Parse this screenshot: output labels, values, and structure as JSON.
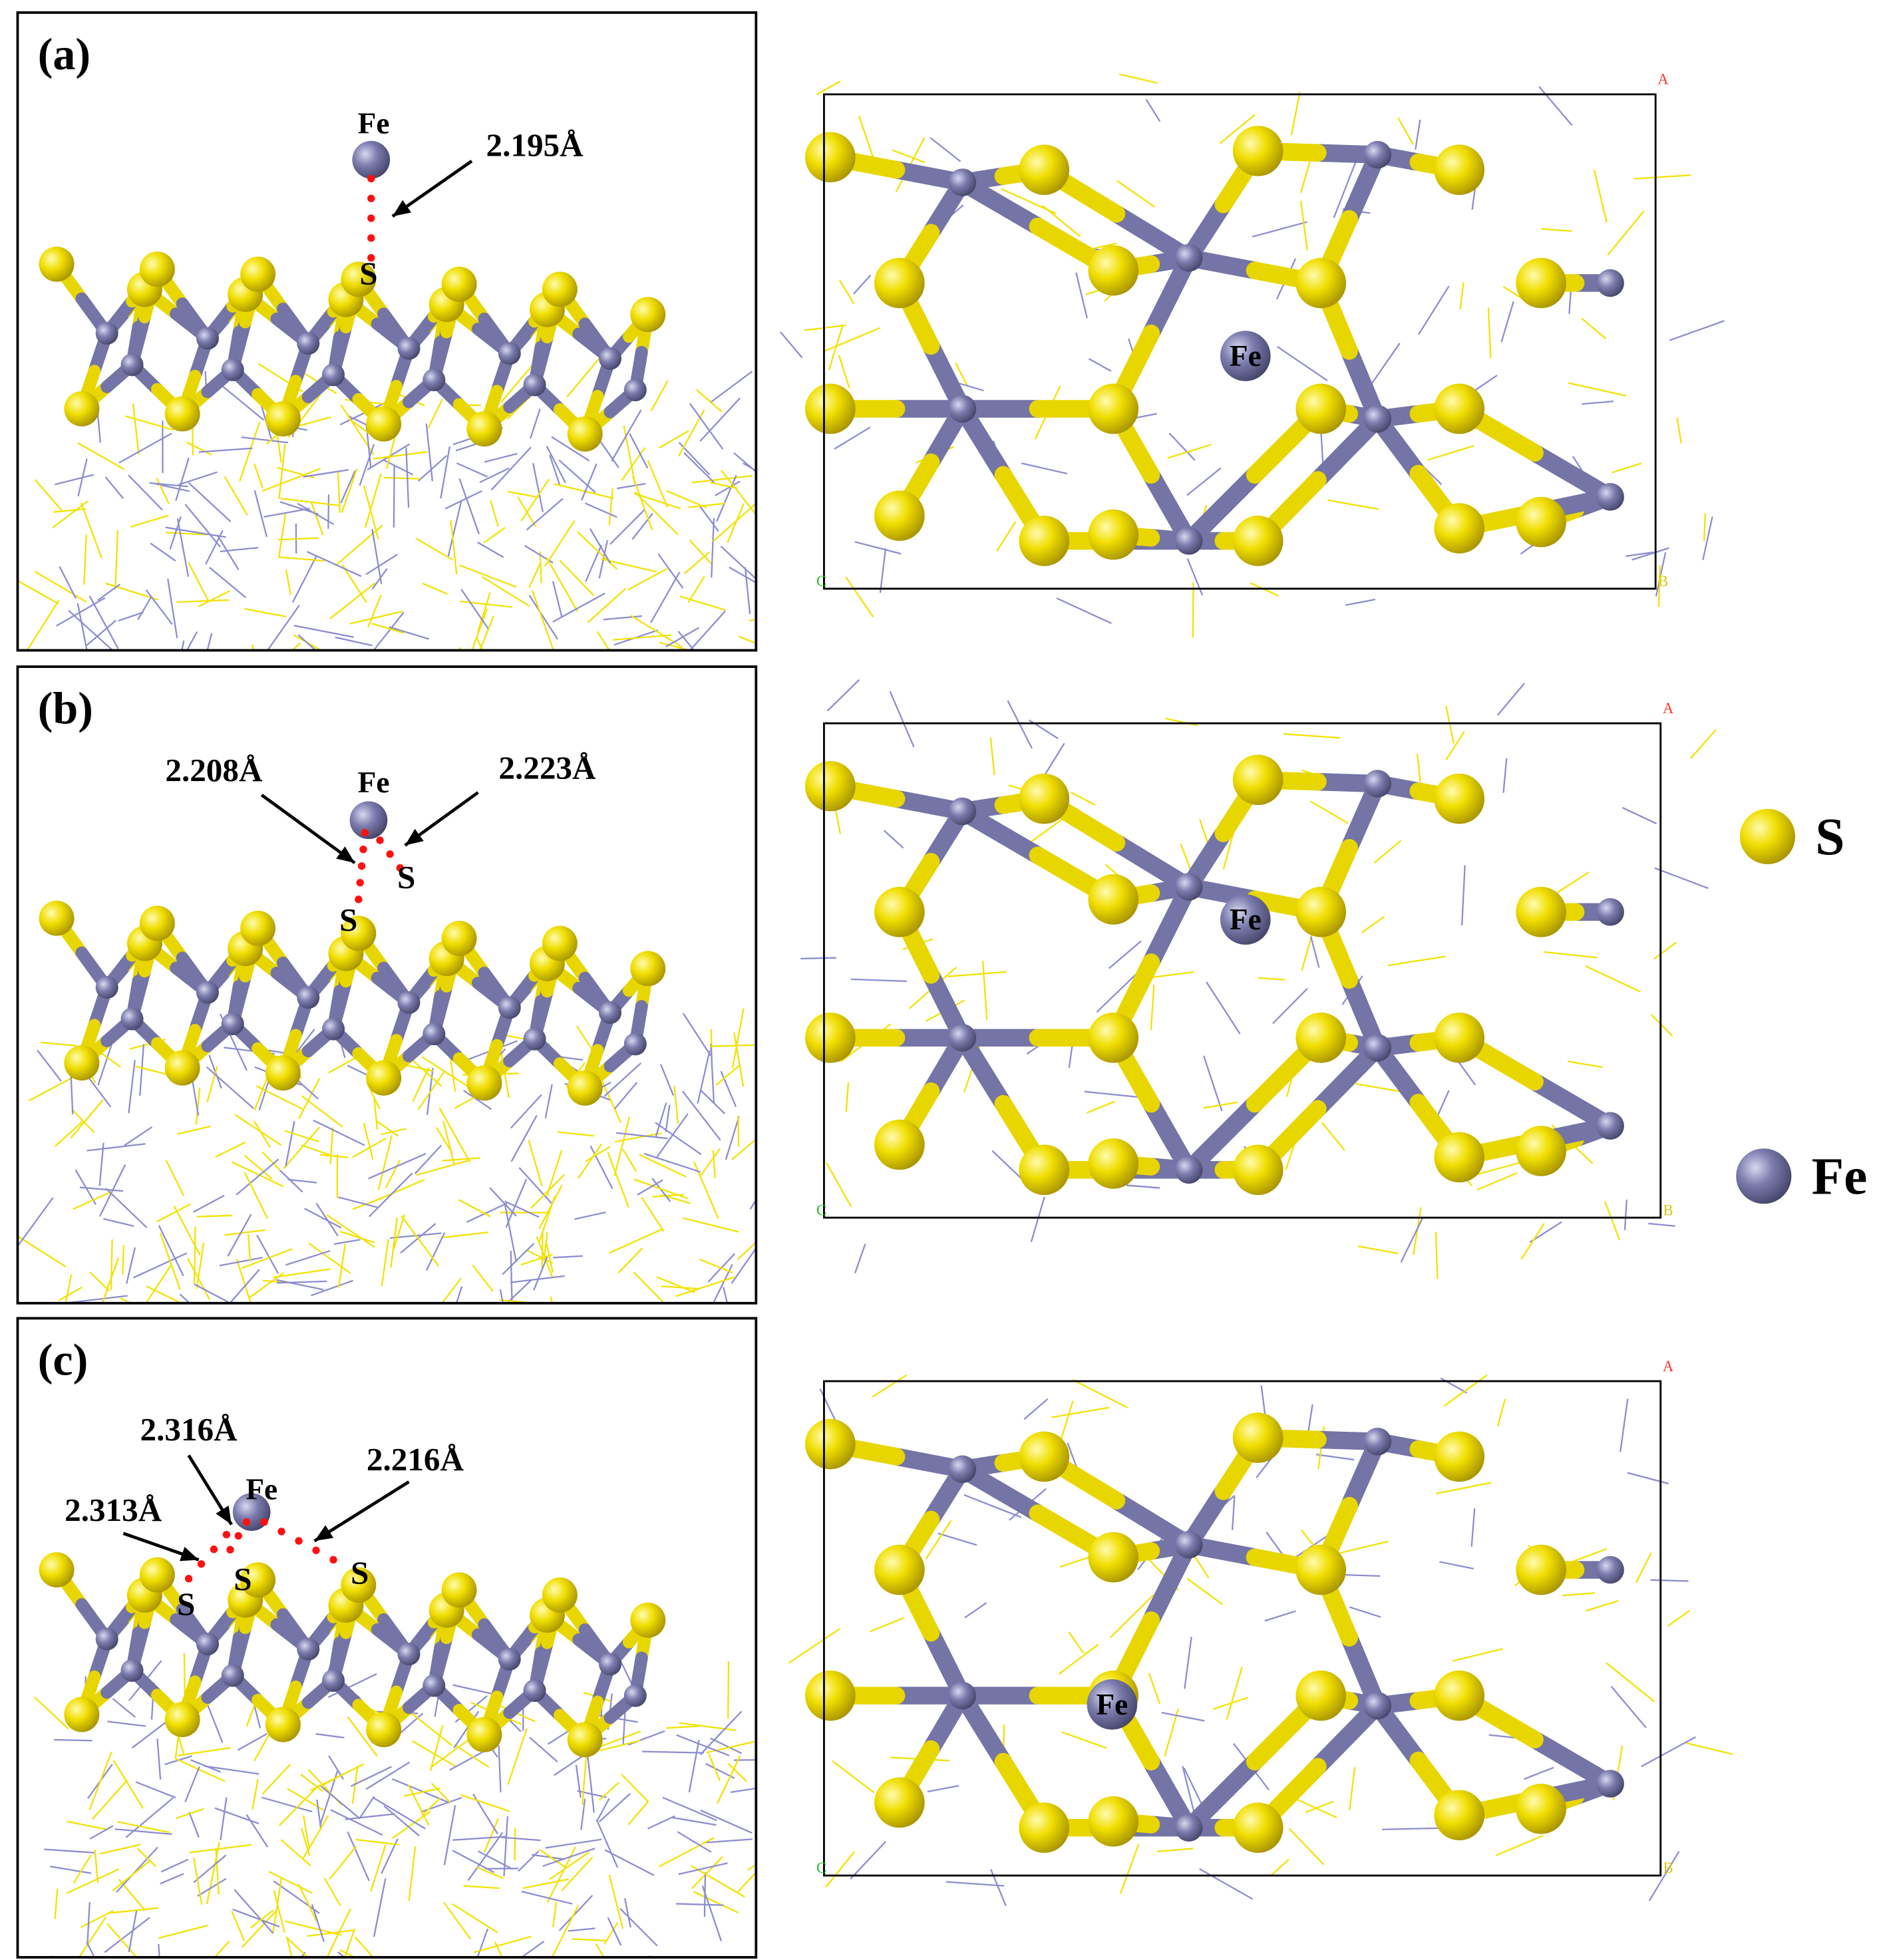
{
  "panels": [
    {
      "label": "(a)",
      "side_view": {
        "atom_labels": [
          "Fe",
          "S"
        ],
        "bond_lengths": [
          "2.195Å"
        ]
      },
      "top_view": {
        "atom_labels": [
          "Fe"
        ],
        "cell_axes": [
          "A",
          "C",
          "B"
        ]
      }
    },
    {
      "label": "(b)",
      "side_view": {
        "atom_labels": [
          "Fe",
          "S",
          "S"
        ],
        "bond_lengths": [
          "2.208Å",
          "2.223Å"
        ]
      },
      "top_view": {
        "atom_labels": [
          "Fe"
        ],
        "cell_axes": [
          "A",
          "C",
          "B"
        ]
      }
    },
    {
      "label": "(c)",
      "side_view": {
        "atom_labels": [
          "Fe",
          "S",
          "S",
          "S"
        ],
        "bond_lengths": [
          "2.316Å",
          "2.216Å",
          "2.313Å"
        ]
      },
      "top_view": {
        "atom_labels": [
          "Fe"
        ],
        "cell_axes": [
          "A",
          "C",
          "B"
        ]
      }
    }
  ],
  "legend": [
    {
      "label": "S"
    },
    {
      "label": "Fe"
    }
  ]
}
